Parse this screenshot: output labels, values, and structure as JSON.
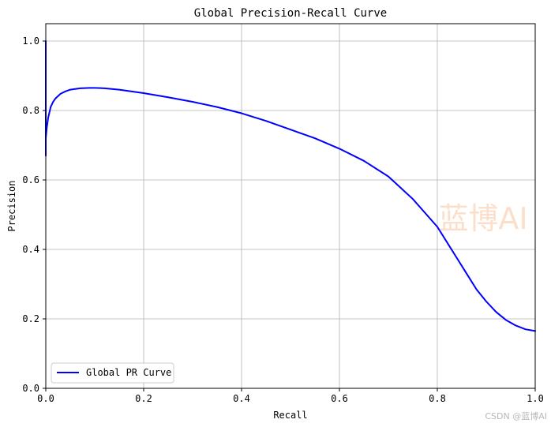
{
  "chart_data": {
    "type": "line",
    "title": "Global Precision-Recall Curve",
    "xlabel": "Recall",
    "ylabel": "Precision",
    "xlim": [
      0.0,
      1.0
    ],
    "ylim": [
      0.0,
      1.05
    ],
    "xticks": [
      0.0,
      0.2,
      0.4,
      0.6,
      0.8,
      1.0
    ],
    "xtick_labels": [
      "0.0",
      "0.2",
      "0.4",
      "0.6",
      "0.8",
      "1.0"
    ],
    "yticks": [
      0.0,
      0.2,
      0.4,
      0.6,
      0.8,
      1.0
    ],
    "ytick_labels": [
      "0.0",
      "0.2",
      "0.4",
      "0.6",
      "0.8",
      "1.0"
    ],
    "grid": true,
    "legend_position": "lower-left",
    "series": [
      {
        "name": "Global PR Curve",
        "color": "#0000ff",
        "x": [
          0.0,
          0.0,
          0.0,
          0.002,
          0.005,
          0.01,
          0.015,
          0.02,
          0.03,
          0.04,
          0.05,
          0.07,
          0.09,
          0.1,
          0.12,
          0.15,
          0.2,
          0.25,
          0.3,
          0.35,
          0.4,
          0.45,
          0.5,
          0.55,
          0.6,
          0.65,
          0.7,
          0.75,
          0.8,
          0.82,
          0.84,
          0.86,
          0.88,
          0.9,
          0.92,
          0.94,
          0.96,
          0.98,
          1.0
        ],
        "y": [
          1.0,
          0.67,
          0.72,
          0.75,
          0.78,
          0.81,
          0.825,
          0.835,
          0.848,
          0.855,
          0.86,
          0.864,
          0.865,
          0.865,
          0.864,
          0.86,
          0.85,
          0.838,
          0.825,
          0.81,
          0.792,
          0.77,
          0.745,
          0.72,
          0.69,
          0.655,
          0.61,
          0.545,
          0.465,
          0.42,
          0.375,
          0.33,
          0.285,
          0.25,
          0.22,
          0.197,
          0.181,
          0.17,
          0.165
        ]
      }
    ]
  },
  "watermark": "蓝博AI",
  "credit": "CSDN @蓝博AI"
}
